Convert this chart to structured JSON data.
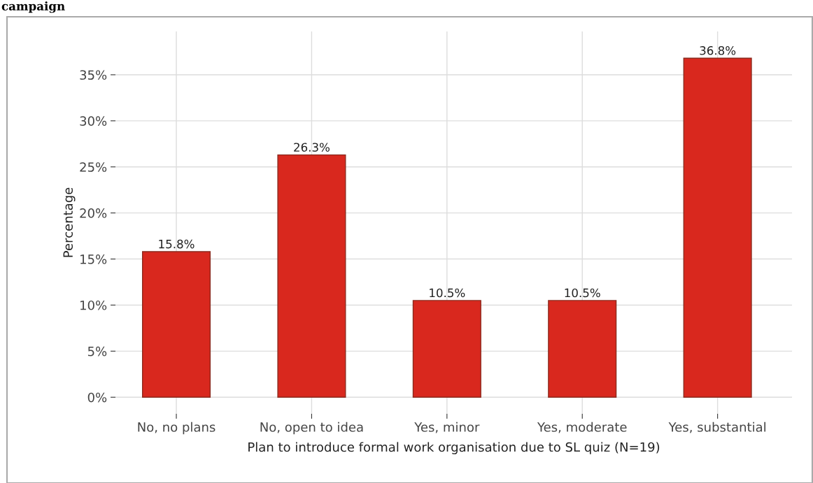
{
  "chart_data": {
    "type": "bar",
    "title": "campaign",
    "categories": [
      "No, no plans",
      "No, open to idea",
      "Yes, minor",
      "Yes, moderate",
      "Yes, substantial"
    ],
    "values": [
      15.8,
      26.3,
      10.5,
      10.5,
      36.8
    ],
    "color": "#d9281e",
    "xlabel": "Plan to introduce formal work organisation due to SL quiz (N=19)",
    "ylabel": "Percentage",
    "ylim": [
      -1.8,
      39.7
    ],
    "yticks": [
      {
        "value": 0,
        "label": "0%"
      },
      {
        "value": 5,
        "label": "5%"
      },
      {
        "value": 10,
        "label": "10%"
      },
      {
        "value": 15,
        "label": "15%"
      },
      {
        "value": 20,
        "label": "20%"
      },
      {
        "value": 25,
        "label": "25%"
      },
      {
        "value": 30,
        "label": "30%"
      },
      {
        "value": 35,
        "label": "35%"
      }
    ],
    "value_labels": [
      "15.8%",
      "26.3%",
      "10.5%",
      "10.5%",
      "36.8%"
    ],
    "grid": true
  }
}
